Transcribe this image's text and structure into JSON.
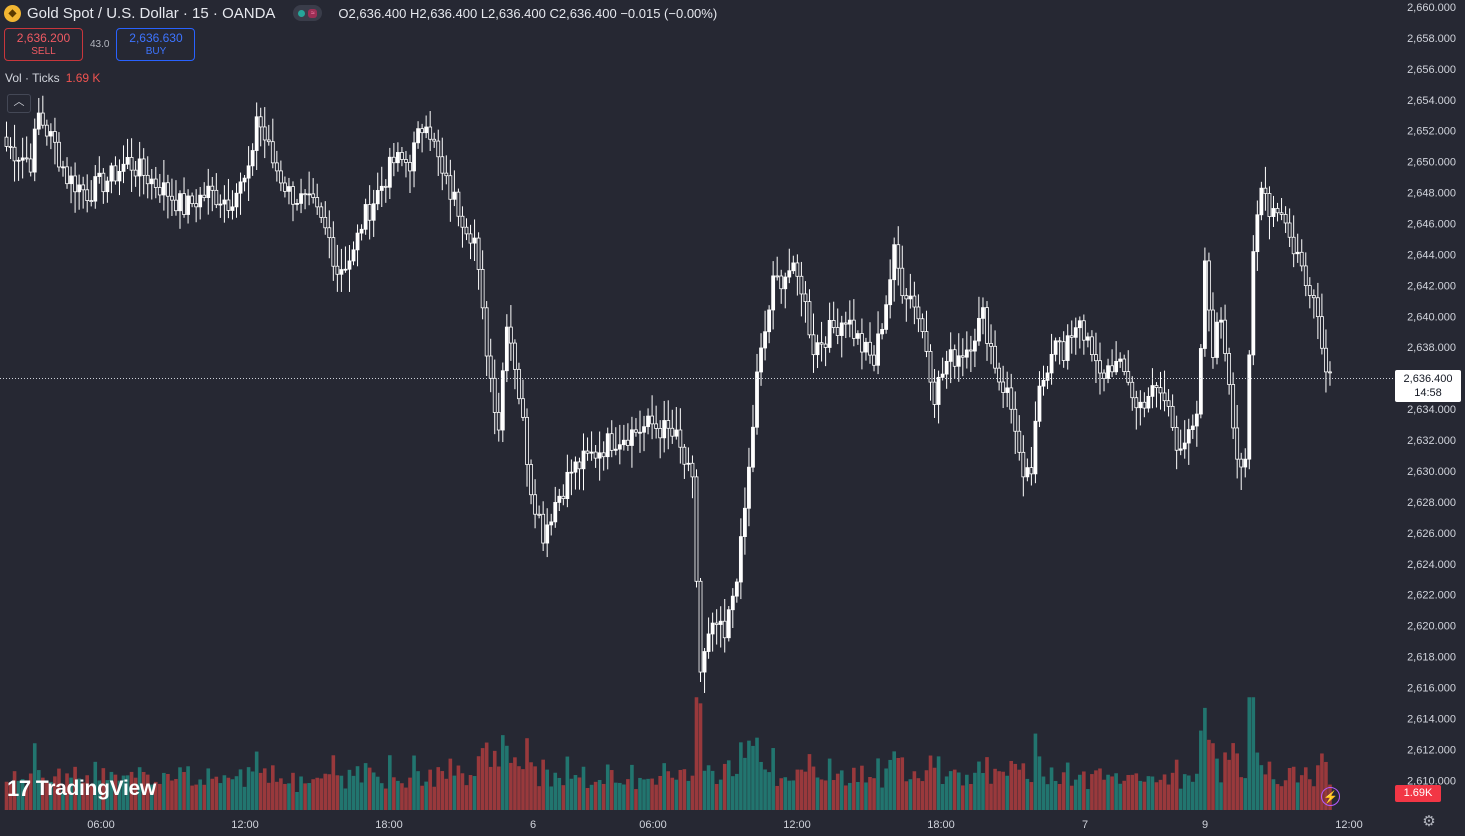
{
  "header": {
    "symbol_icon": "gold-coin-icon",
    "title": "Gold Spot / U.S. Dollar · 15 · OANDA",
    "ohlc": "O2,636.400 H2,636.400 L2,636.400 C2,636.400 −0.015 (−0.00%)"
  },
  "trade": {
    "sell_price": "2,636.200",
    "sell_label": "SELL",
    "spread": "43.0",
    "buy_price": "2,636.630",
    "buy_label": "BUY"
  },
  "volume_indicator": {
    "label": "Vol · Ticks",
    "value": "1.69 K"
  },
  "logo": {
    "text": "TradingView",
    "mark": "17"
  },
  "price_tag": {
    "price": "2,636.400",
    "countdown": "14:58"
  },
  "volume_tag": "1.69K",
  "colors": {
    "background": "#262833",
    "candle": "#ffffff",
    "volume_up": "#22756f",
    "volume_down": "#99393c",
    "text": "#d1d4dc"
  },
  "icons": {
    "collapse": "chevron-up-icon",
    "settings": "gear-icon",
    "alert": "lightning-icon"
  },
  "chart_data": {
    "type": "candlestick",
    "interval": "15",
    "y_ticks": [
      "2,660.000",
      "2,658.000",
      "2,656.000",
      "2,654.000",
      "2,652.000",
      "2,650.000",
      "2,648.000",
      "2,646.000",
      "2,644.000",
      "2,642.000",
      "2,640.000",
      "2,638.000",
      "2,636.000",
      "2,634.000",
      "2,632.000",
      "2,630.000",
      "2,628.000",
      "2,626.000",
      "2,624.000",
      "2,622.000",
      "2,620.000",
      "2,618.000",
      "2,616.000",
      "2,614.000",
      "2,612.000",
      "2,610.000"
    ],
    "ylim": [
      2609.5,
      2660
    ],
    "x_ticks": [
      "06:00",
      "12:00",
      "18:00",
      "6",
      "06:00",
      "12:00",
      "18:00",
      "7",
      "9",
      "12:00"
    ],
    "current_price": 2636.4,
    "price_anchors": [
      [
        0,
        2651
      ],
      [
        6,
        2650
      ],
      [
        8,
        2653
      ],
      [
        12,
        2651
      ],
      [
        15,
        2649
      ],
      [
        20,
        2648
      ],
      [
        26,
        2649
      ],
      [
        30,
        2650
      ],
      [
        35,
        2649
      ],
      [
        40,
        2648
      ],
      [
        44,
        2647
      ],
      [
        50,
        2648
      ],
      [
        55,
        2647.5
      ],
      [
        60,
        2649
      ],
      [
        62,
        2653
      ],
      [
        66,
        2650
      ],
      [
        70,
        2648
      ],
      [
        76,
        2647
      ],
      [
        80,
        2645
      ],
      [
        82,
        2643
      ],
      [
        86,
        2644
      ],
      [
        88,
        2646
      ],
      [
        92,
        2648
      ],
      [
        96,
        2650
      ],
      [
        100,
        2650
      ],
      [
        104,
        2653
      ],
      [
        108,
        2649
      ],
      [
        112,
        2647
      ],
      [
        116,
        2645
      ],
      [
        118,
        2640
      ],
      [
        120,
        2636
      ],
      [
        122,
        2633
      ],
      [
        124,
        2640
      ],
      [
        126,
        2637
      ],
      [
        128,
        2633
      ],
      [
        130,
        2629
      ],
      [
        133,
        2626
      ],
      [
        136,
        2628
      ],
      [
        140,
        2630
      ],
      [
        145,
        2631
      ],
      [
        150,
        2632
      ],
      [
        155,
        2632.5
      ],
      [
        160,
        2633
      ],
      [
        164,
        2632.5
      ],
      [
        166,
        2632
      ],
      [
        170,
        2629
      ],
      [
        172,
        2617
      ],
      [
        174,
        2619
      ],
      [
        176,
        2620
      ],
      [
        178,
        2619
      ],
      [
        180,
        2622
      ],
      [
        182,
        2625
      ],
      [
        184,
        2630
      ],
      [
        186,
        2636
      ],
      [
        188,
        2639
      ],
      [
        190,
        2642
      ],
      [
        194,
        2643
      ],
      [
        197,
        2642
      ],
      [
        200,
        2638
      ],
      [
        204,
        2639
      ],
      [
        208,
        2640
      ],
      [
        212,
        2638
      ],
      [
        215,
        2637
      ],
      [
        218,
        2641
      ],
      [
        220,
        2644
      ],
      [
        222,
        2642
      ],
      [
        225,
        2641
      ],
      [
        228,
        2638
      ],
      [
        230,
        2635
      ],
      [
        233,
        2637
      ],
      [
        238,
        2638
      ],
      [
        242,
        2640
      ],
      [
        244,
        2638
      ],
      [
        246,
        2636
      ],
      [
        248,
        2635
      ],
      [
        250,
        2633
      ],
      [
        252,
        2629
      ],
      [
        254,
        2630
      ],
      [
        256,
        2635
      ],
      [
        258,
        2637
      ],
      [
        260,
        2639
      ],
      [
        262,
        2637
      ],
      [
        264,
        2639
      ],
      [
        266,
        2640
      ],
      [
        268,
        2638
      ],
      [
        271,
        2636
      ],
      [
        274,
        2637
      ],
      [
        278,
        2636
      ],
      [
        280,
        2634
      ],
      [
        283,
        2635
      ],
      [
        286,
        2635
      ],
      [
        288,
        2634
      ],
      [
        290,
        2632
      ],
      [
        293,
        2632
      ],
      [
        295,
        2633
      ],
      [
        297,
        2643
      ],
      [
        299,
        2638
      ],
      [
        301,
        2640
      ],
      [
        303,
        2636
      ],
      [
        305,
        2631
      ],
      [
        307,
        2630
      ],
      [
        309,
        2644
      ],
      [
        311,
        2649
      ],
      [
        313,
        2647
      ],
      [
        316,
        2647
      ],
      [
        318,
        2645
      ],
      [
        320,
        2644
      ],
      [
        322,
        2642
      ],
      [
        324,
        2642
      ],
      [
        326,
        2638
      ],
      [
        328,
        2636.4
      ]
    ],
    "volume_notes": "volume bars colored by candle direction; scale max ~2.2K ticks; last volume 1.69K"
  }
}
